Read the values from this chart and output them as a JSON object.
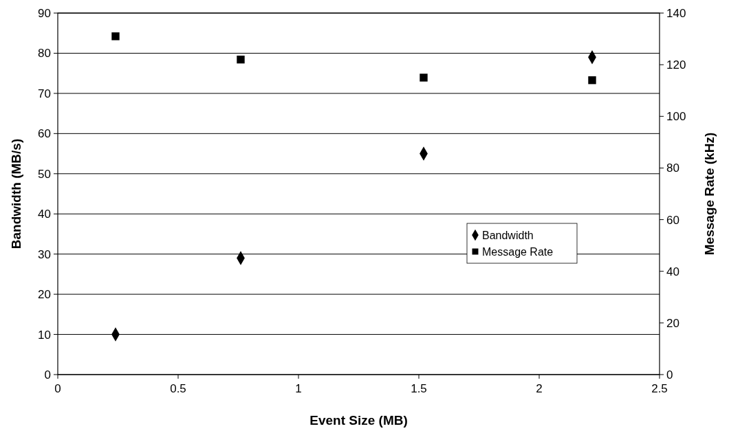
{
  "chart_data": {
    "type": "scatter",
    "xlabel": "Event Size (MB)",
    "ylabel": "Bandwidth (MB/s)",
    "y2label": "Message Rate (kHz)",
    "x": [
      0.24,
      0.76,
      1.52,
      2.22
    ],
    "series": [
      {
        "name": "Bandwidth",
        "color": "#000000",
        "marker": "diamond",
        "values": [
          10,
          29,
          55,
          79
        ]
      },
      {
        "name": "Message Rate",
        "color": "#000000",
        "marker": "square",
        "axis": "y2",
        "values": [
          131,
          122,
          115,
          114
        ]
      }
    ],
    "xlim": [
      0,
      2.5
    ],
    "xticks": [
      0,
      0.5,
      1,
      1.5,
      2,
      2.5
    ],
    "ylim": [
      0,
      90
    ],
    "yticks": [
      0,
      10,
      20,
      30,
      40,
      50,
      60,
      70,
      80,
      90
    ],
    "y2lim": [
      0,
      140
    ],
    "y2ticks": [
      0,
      20,
      40,
      60,
      80,
      100,
      120,
      140
    ],
    "grid": "y",
    "legend": "right"
  }
}
